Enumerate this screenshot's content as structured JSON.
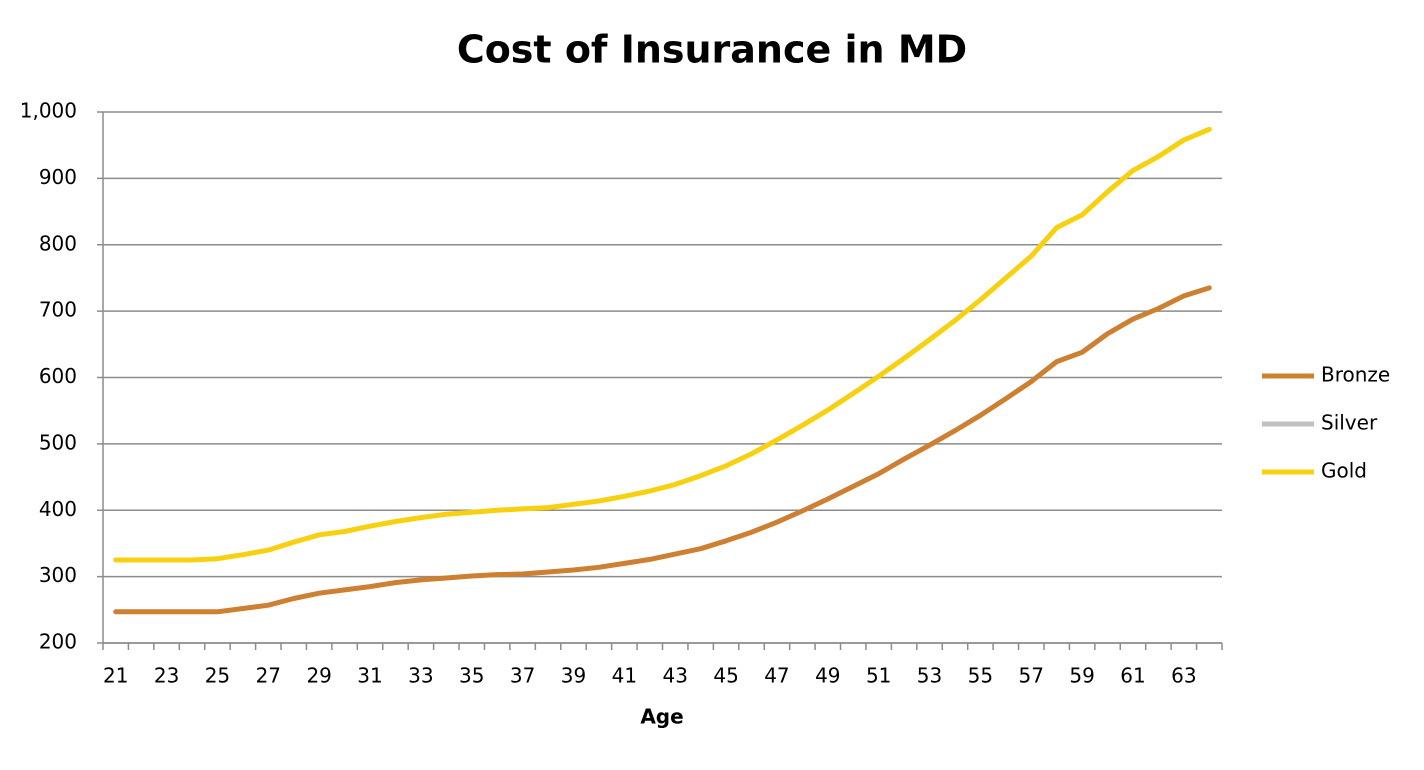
{
  "chart_data": {
    "type": "line",
    "title": "Cost of Insurance in MD",
    "x_label": "Age",
    "categories": [
      "21",
      null,
      "23",
      null,
      "25",
      null,
      "27",
      null,
      "29",
      null,
      "31",
      null,
      "33",
      null,
      "35",
      null,
      "37",
      null,
      "39",
      null,
      "41",
      null,
      "43",
      null,
      "45",
      null,
      "47",
      null,
      "49",
      null,
      "51",
      null,
      "53",
      null,
      "55",
      null,
      "57",
      null,
      "59",
      null,
      "61",
      null,
      "63",
      null
    ],
    "series": [
      {
        "name": "Bronze",
        "color": "#cd7f32",
        "values": [
          247,
          247,
          247,
          247,
          247,
          252,
          257,
          267,
          275,
          280,
          285,
          291,
          295,
          298,
          301,
          303,
          304,
          307,
          310,
          314,
          320,
          326,
          334,
          342,
          354,
          367,
          382,
          399,
          417,
          436,
          455,
          477,
          498,
          520,
          543,
          568,
          594,
          624,
          638,
          666,
          688,
          704,
          723,
          735
        ]
      },
      {
        "name": "Silver",
        "color": "#bfbfbf",
        "values": [
          null,
          null,
          null,
          null,
          null,
          null,
          null,
          null,
          null,
          null,
          null,
          null,
          null,
          null,
          null,
          null,
          null,
          null,
          null,
          null,
          null,
          null,
          null,
          null,
          null,
          null,
          null,
          null,
          null,
          null,
          null,
          null,
          null,
          null,
          null,
          null,
          null,
          null,
          null,
          null,
          null,
          null,
          null,
          null
        ]
      },
      {
        "name": "Gold",
        "color": "#f7d10f",
        "values": [
          325,
          325,
          325,
          325,
          327,
          333,
          340,
          352,
          363,
          368,
          376,
          383,
          389,
          394,
          397,
          400,
          402,
          404,
          409,
          414,
          421,
          429,
          439,
          452,
          467,
          485,
          506,
          528,
          551,
          576,
          602,
          629,
          657,
          686,
          717,
          750,
          783,
          826,
          845,
          880,
          912,
          933,
          958,
          974
        ]
      }
    ],
    "ylim": [
      200,
      1000
    ],
    "yticks": [
      200,
      300,
      400,
      500,
      600,
      700,
      800,
      900,
      {
        "value": 1000,
        "label": "1,000"
      }
    ],
    "grid": true,
    "legend": "right"
  }
}
